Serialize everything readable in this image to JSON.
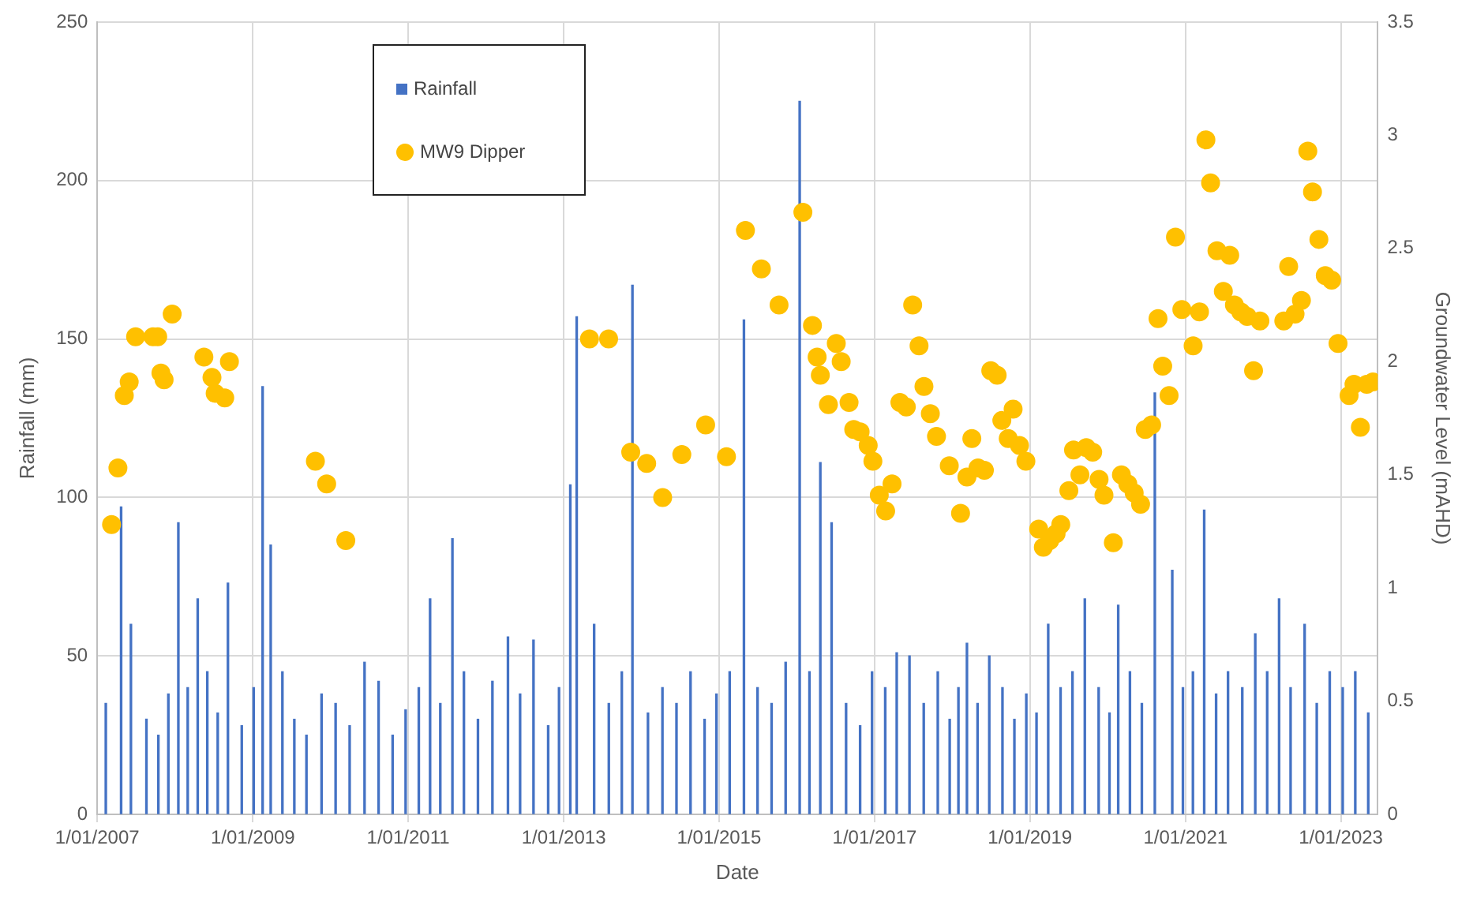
{
  "chart_data": {
    "type": "bar",
    "xlabel": "Date",
    "ylabel": "Rainfall (mm)",
    "y2label": "Groundwater Level (mAHD)",
    "xlim": [
      "2007-01-01",
      "2023-06-24"
    ],
    "xticks": [
      {
        "value": "2007-01-01",
        "label": "1/01/2007"
      },
      {
        "value": "2009-01-01",
        "label": "1/01/2009"
      },
      {
        "value": "2011-01-01",
        "label": "1/01/2011"
      },
      {
        "value": "2013-01-01",
        "label": "1/01/2013"
      },
      {
        "value": "2015-01-01",
        "label": "1/01/2015"
      },
      {
        "value": "2017-01-01",
        "label": "1/01/2017"
      },
      {
        "value": "2019-01-01",
        "label": "1/01/2019"
      },
      {
        "value": "2021-01-01",
        "label": "1/01/2021"
      },
      {
        "value": "2023-01-01",
        "label": "1/01/2023"
      }
    ],
    "ylim": [
      0,
      250
    ],
    "yticks": [
      0,
      50,
      100,
      150,
      200,
      250
    ],
    "y2lim": [
      0,
      3.5
    ],
    "y2ticks": [
      0,
      0.5,
      1,
      1.5,
      2,
      2.5,
      3,
      3.5
    ],
    "grid": true,
    "legend": "top left",
    "marker": "circle",
    "series": [
      {
        "name": "Rainfall",
        "color": "#4472c4",
        "x": [
          "2007-02-10",
          "2007-04-23",
          "2007-06-08",
          "2007-08-20",
          "2007-10-15",
          "2007-12-01",
          "2008-01-17",
          "2008-03-01",
          "2008-04-17",
          "2008-06-01",
          "2008-07-20",
          "2008-09-06",
          "2008-11-10",
          "2009-01-05",
          "2009-02-16",
          "2009-03-26",
          "2009-05-20",
          "2009-07-15",
          "2009-09-10",
          "2009-11-20",
          "2010-01-25",
          "2010-04-01",
          "2010-06-10",
          "2010-08-15",
          "2010-10-20",
          "2010-12-20",
          "2011-02-20",
          "2011-04-14",
          "2011-06-01",
          "2011-07-28",
          "2011-09-20",
          "2011-11-25",
          "2012-02-01",
          "2012-04-14",
          "2012-06-10",
          "2012-08-12",
          "2012-10-20",
          "2012-12-10",
          "2013-02-01",
          "2013-03-03",
          "2013-05-24",
          "2013-08-01",
          "2013-10-01",
          "2013-11-20",
          "2014-02-01",
          "2014-04-10",
          "2014-06-15",
          "2014-08-20",
          "2014-10-25",
          "2014-12-20",
          "2015-02-20",
          "2015-04-28",
          "2015-07-01",
          "2015-09-05",
          "2015-11-10",
          "2016-01-15",
          "2016-03-01",
          "2016-04-21",
          "2016-06-13",
          "2016-08-20",
          "2016-10-25",
          "2016-12-20",
          "2017-02-20",
          "2017-04-15",
          "2017-06-14",
          "2017-08-20",
          "2017-10-25",
          "2017-12-20",
          "2018-01-30",
          "2018-03-11",
          "2018-04-30",
          "2018-06-24",
          "2018-08-25",
          "2018-10-20",
          "2018-12-15",
          "2019-02-01",
          "2019-03-28",
          "2019-05-25",
          "2019-07-20",
          "2019-09-16",
          "2019-11-20",
          "2020-01-10",
          "2020-02-20",
          "2020-04-15",
          "2020-06-10",
          "2020-08-10",
          "2020-10-31",
          "2020-12-20",
          "2021-02-05",
          "2021-03-30",
          "2021-05-25",
          "2021-07-20",
          "2021-09-25",
          "2021-11-25",
          "2022-01-20",
          "2022-03-17",
          "2022-05-10",
          "2022-07-15",
          "2022-09-10",
          "2022-11-10",
          "2023-01-10",
          "2023-03-10",
          "2023-05-10"
        ],
        "values": [
          35,
          97,
          60,
          30,
          25,
          38,
          92,
          40,
          68,
          45,
          32,
          73,
          28,
          40,
          135,
          85,
          45,
          30,
          25,
          38,
          35,
          28,
          48,
          42,
          25,
          33,
          40,
          68,
          35,
          87,
          45,
          30,
          42,
          56,
          38,
          55,
          28,
          40,
          104,
          157,
          60,
          35,
          45,
          167,
          32,
          40,
          35,
          45,
          30,
          38,
          45,
          156,
          40,
          35,
          48,
          225,
          45,
          111,
          92,
          35,
          28,
          45,
          40,
          51,
          50,
          35,
          45,
          30,
          40,
          54,
          35,
          50,
          40,
          30,
          38,
          32,
          60,
          40,
          45,
          68,
          40,
          32,
          66,
          45,
          35,
          133,
          77,
          40,
          45,
          96,
          38,
          45,
          40,
          57,
          45,
          68,
          40,
          60,
          35,
          45,
          40,
          45,
          32
        ]
      },
      {
        "name": "MW9 Dipper",
        "type": "scatter",
        "axis": "y2",
        "color": "#ffc000",
        "x": [
          "2007-03-09",
          "2007-04-08",
          "2007-05-08",
          "2007-05-31",
          "2007-06-30",
          "2007-09-20",
          "2007-10-12",
          "2007-10-27",
          "2007-11-11",
          "2007-12-19",
          "2008-05-16",
          "2008-06-23",
          "2008-07-08",
          "2008-08-22",
          "2008-09-13",
          "2009-10-22",
          "2009-12-14",
          "2010-03-14",
          "2013-05-02",
          "2013-07-31",
          "2013-11-12",
          "2014-01-26",
          "2014-04-11",
          "2014-07-10",
          "2014-10-30",
          "2015-02-05",
          "2015-05-05",
          "2015-07-19",
          "2015-10-10",
          "2016-01-30",
          "2016-03-15",
          "2016-04-06",
          "2016-04-21",
          "2016-05-29",
          "2016-07-05",
          "2016-07-28",
          "2016-09-03",
          "2016-09-25",
          "2016-10-25",
          "2016-12-02",
          "2016-12-24",
          "2017-01-23",
          "2017-02-22",
          "2017-03-24",
          "2017-04-30",
          "2017-05-30",
          "2017-06-29",
          "2017-07-29",
          "2017-08-21",
          "2017-09-20",
          "2017-10-19",
          "2017-12-18",
          "2018-02-09",
          "2018-03-11",
          "2018-04-03",
          "2018-05-02",
          "2018-06-01",
          "2018-07-01",
          "2018-07-31",
          "2018-08-22",
          "2018-09-21",
          "2018-10-14",
          "2018-11-13",
          "2018-12-13",
          "2019-02-11",
          "2019-03-05",
          "2019-04-04",
          "2019-05-04",
          "2019-05-26",
          "2019-07-03",
          "2019-07-25",
          "2019-08-24",
          "2019-09-23",
          "2019-10-23",
          "2019-11-22",
          "2019-12-15",
          "2020-01-28",
          "2020-03-06",
          "2020-04-05",
          "2020-05-05",
          "2020-06-04",
          "2020-06-26",
          "2020-07-26",
          "2020-08-25",
          "2020-09-16",
          "2020-10-16",
          "2020-11-15",
          "2020-12-15",
          "2021-02-06",
          "2021-03-08",
          "2021-04-07",
          "2021-04-29",
          "2021-05-29",
          "2021-06-28",
          "2021-07-28",
          "2021-08-19",
          "2021-09-18",
          "2021-10-18",
          "2021-11-17",
          "2021-12-17",
          "2022-04-08",
          "2022-05-01",
          "2022-05-31",
          "2022-06-30",
          "2022-07-30",
          "2022-08-21",
          "2022-09-20",
          "2022-10-20",
          "2022-11-19",
          "2022-12-19",
          "2023-02-09",
          "2023-03-04",
          "2023-04-03",
          "2023-05-03",
          "2023-06-01"
        ],
        "values": [
          1.28,
          1.53,
          1.85,
          1.91,
          2.11,
          2.11,
          2.11,
          1.95,
          1.92,
          2.21,
          2.02,
          1.93,
          1.86,
          1.84,
          2.0,
          1.56,
          1.46,
          1.21,
          2.1,
          2.1,
          1.6,
          1.55,
          1.4,
          1.59,
          1.72,
          1.58,
          2.58,
          2.41,
          2.25,
          2.66,
          2.16,
          2.02,
          1.94,
          1.81,
          2.08,
          2.0,
          1.82,
          1.7,
          1.69,
          1.63,
          1.56,
          1.41,
          1.34,
          1.46,
          1.82,
          1.8,
          2.25,
          2.07,
          1.89,
          1.77,
          1.67,
          1.54,
          1.33,
          1.49,
          1.66,
          1.53,
          1.52,
          1.96,
          1.94,
          1.74,
          1.66,
          1.79,
          1.63,
          1.56,
          1.26,
          1.18,
          1.21,
          1.24,
          1.28,
          1.43,
          1.61,
          1.5,
          1.62,
          1.6,
          1.48,
          1.41,
          1.2,
          1.5,
          1.46,
          1.42,
          1.37,
          1.7,
          1.72,
          2.19,
          1.98,
          1.85,
          2.55,
          2.23,
          2.07,
          2.22,
          2.98,
          2.79,
          2.49,
          2.31,
          2.47,
          2.25,
          2.22,
          2.2,
          1.96,
          2.18,
          2.18,
          2.42,
          2.21,
          2.27,
          2.93,
          2.75,
          2.54,
          2.38,
          2.36,
          2.08,
          1.85,
          1.9,
          1.71,
          1.9,
          1.91
        ]
      }
    ]
  }
}
